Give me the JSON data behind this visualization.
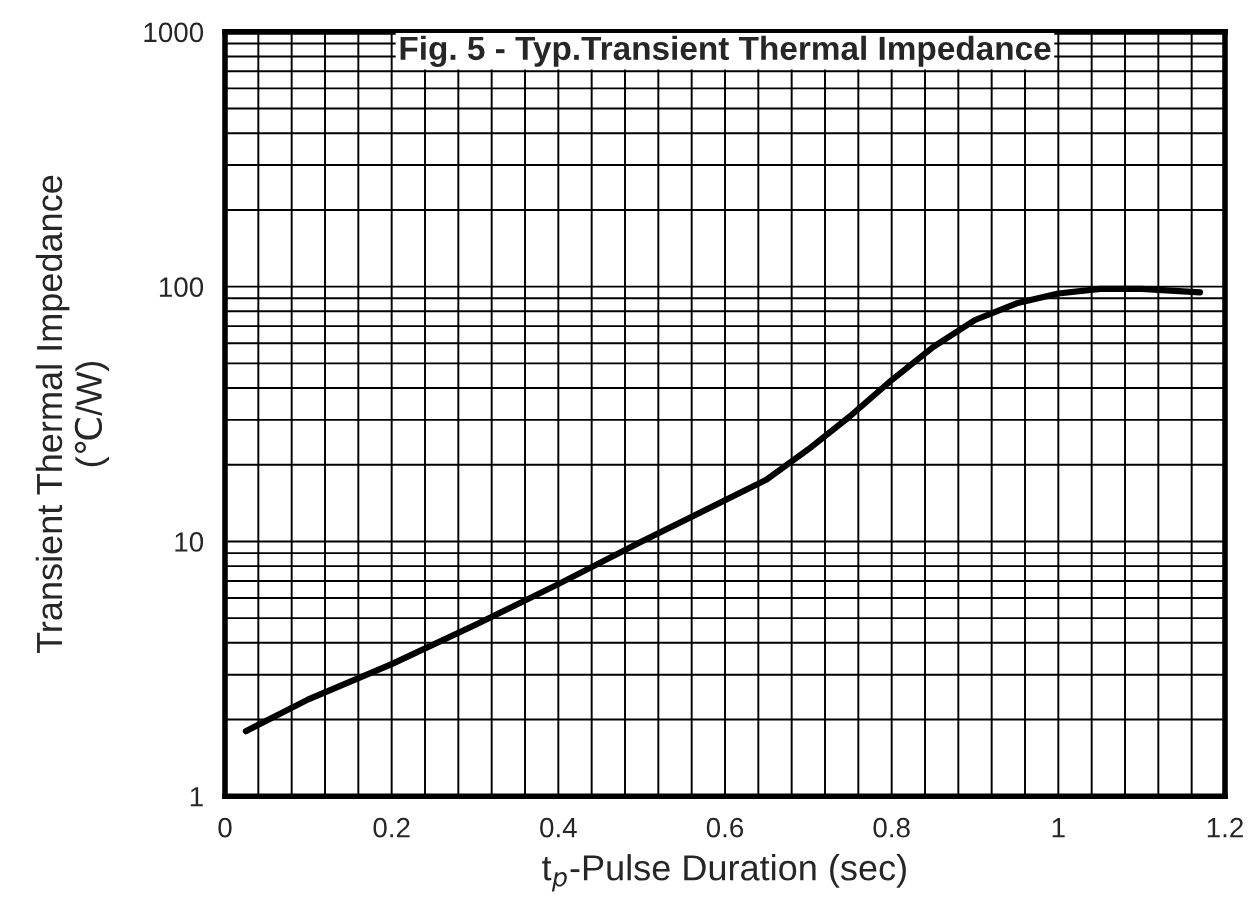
{
  "chart_data": {
    "type": "line",
    "title": "Fig. 5 - Typ.Transient Thermal Impedance",
    "xlabel": "t$_{p}$-Pulse Duration (sec)",
    "ylabel": "Transient Thermal Impedance\n(℃/W)",
    "x": [
      0.025,
      0.1,
      0.2,
      0.3,
      0.4,
      0.5,
      0.6,
      0.65,
      0.7,
      0.75,
      0.8,
      0.85,
      0.9,
      0.95,
      1.0,
      1.05,
      1.1,
      1.17
    ],
    "series": [
      {
        "color": "#000000",
        "values": [
          1.8,
          2.4,
          3.3,
          4.7,
          6.8,
          10,
          14.5,
          17.5,
          23,
          31,
          43,
          58,
          74,
          86,
          94,
          98,
          98,
          95
        ]
      }
    ],
    "xlim": [
      0,
      1.2
    ],
    "xticks": [
      0,
      0.2,
      0.4,
      0.6,
      0.8,
      1,
      1.2
    ],
    "ylim": [
      1,
      1000
    ],
    "yticks": [
      1,
      10,
      100,
      1000
    ],
    "log": "y",
    "grid": true,
    "marker": "none",
    "line_style": "solid"
  }
}
